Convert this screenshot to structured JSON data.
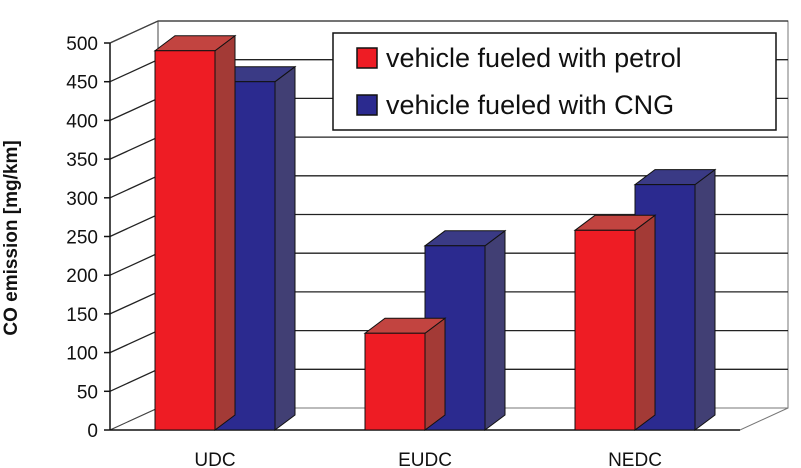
{
  "chart_data": {
    "type": "bar",
    "categories": [
      "UDC",
      "EUDC",
      "NEDC"
    ],
    "series": [
      {
        "name": "vehicle fueled with petrol",
        "values": [
          490,
          125,
          258
        ],
        "color": "#ee1c24"
      },
      {
        "name": "vehicle fueled with CNG",
        "values": [
          450,
          238,
          317
        ],
        "color": "#2b2a8f"
      }
    ],
    "ylabel": "CO emission [mg/km]",
    "xlabel": "",
    "title": "",
    "ylim": [
      0,
      500
    ],
    "yticks": [
      0,
      50,
      100,
      150,
      200,
      250,
      300,
      350,
      400,
      450,
      500
    ],
    "grid": true,
    "legend_position": "top-right",
    "style": "3d-bars"
  }
}
